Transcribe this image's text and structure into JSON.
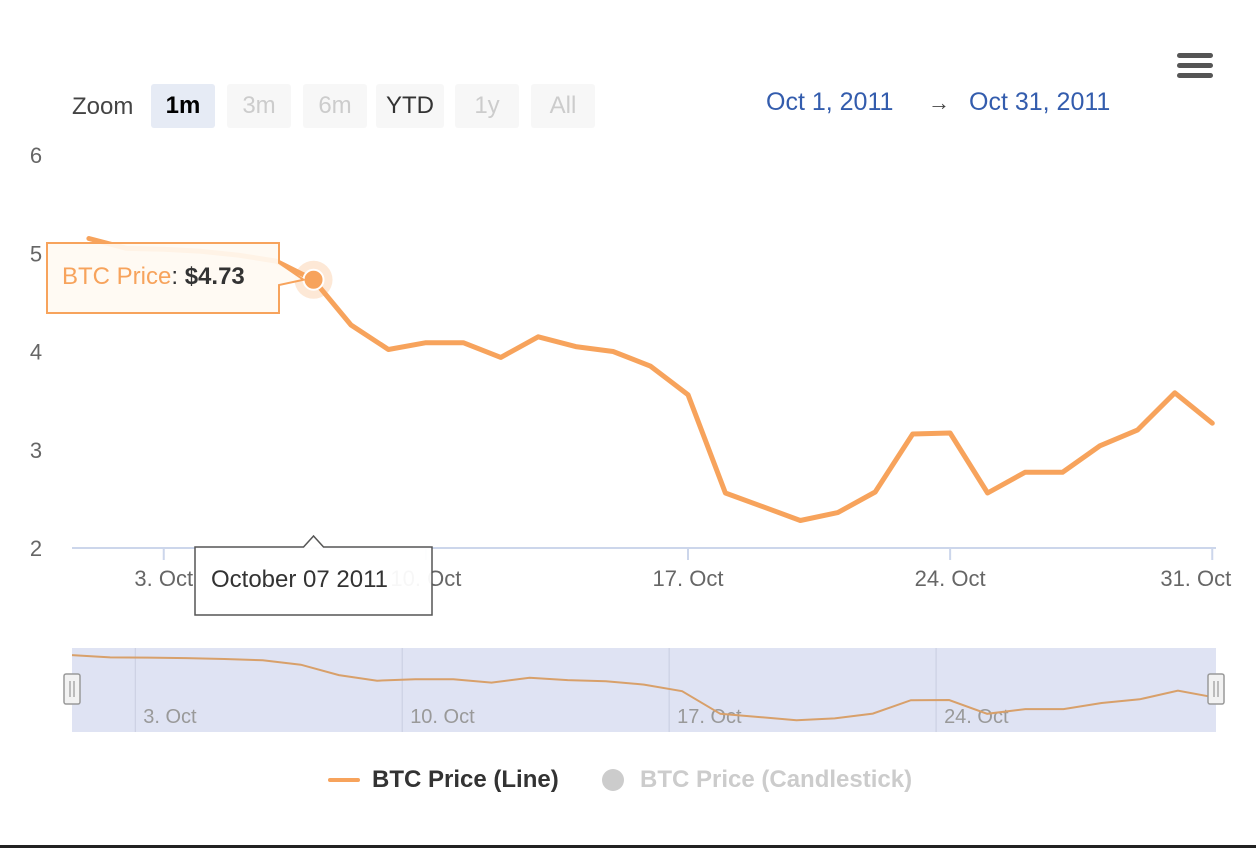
{
  "range_selector": {
    "zoom_label": "Zoom",
    "buttons": [
      {
        "label": "1m",
        "state": "active"
      },
      {
        "label": "3m",
        "state": "disabled"
      },
      {
        "label": "6m",
        "state": "disabled"
      },
      {
        "label": "YTD",
        "state": "enabled"
      },
      {
        "label": "1y",
        "state": "disabled"
      },
      {
        "label": "All",
        "state": "disabled"
      }
    ],
    "from_date": "Oct 1, 2011",
    "arrow": "→",
    "to_date": "Oct 31, 2011"
  },
  "menu": {
    "icon": "hamburger-menu-icon"
  },
  "tooltip": {
    "series_label": "BTC Price",
    "separator": ": ",
    "value_text": "$4.73",
    "date_label": "October 07 2011",
    "hover_day": 7
  },
  "legend": {
    "items": [
      {
        "label": "BTC Price (Line)",
        "visible": true
      },
      {
        "label": "BTC Price (Candlestick)",
        "visible": false
      }
    ]
  },
  "colors": {
    "series": "#f7a35c",
    "navigator_mask": "#dfe3f3",
    "axis": "#ccd6eb",
    "label": "#666666"
  },
  "chart_data": {
    "type": "line",
    "series": [
      {
        "name": "BTC Price (Line)",
        "x": [
          "2011-10-01",
          "2011-10-02",
          "2011-10-03",
          "2011-10-04",
          "2011-10-05",
          "2011-10-06",
          "2011-10-07",
          "2011-10-08",
          "2011-10-09",
          "2011-10-10",
          "2011-10-11",
          "2011-10-12",
          "2011-10-13",
          "2011-10-14",
          "2011-10-15",
          "2011-10-16",
          "2011-10-17",
          "2011-10-18",
          "2011-10-19",
          "2011-10-20",
          "2011-10-21",
          "2011-10-22",
          "2011-10-23",
          "2011-10-24",
          "2011-10-25",
          "2011-10-26",
          "2011-10-27",
          "2011-10-28",
          "2011-10-29",
          "2011-10-30",
          "2011-10-31"
        ],
        "y": [
          5.15,
          5.05,
          5.04,
          5.02,
          4.98,
          4.92,
          4.73,
          4.27,
          4.02,
          4.09,
          4.09,
          3.94,
          4.15,
          4.05,
          4.0,
          3.85,
          3.56,
          2.56,
          2.42,
          2.28,
          2.36,
          2.57,
          3.16,
          3.17,
          2.56,
          2.77,
          2.77,
          3.04,
          3.2,
          3.58,
          3.27
        ]
      }
    ],
    "x_tick_labels": [
      "3. Oct",
      "10. Oct",
      "17. Oct",
      "24. Oct",
      "31. Oct"
    ],
    "y_tick_labels": [
      "2",
      "3",
      "4",
      "5",
      "6"
    ],
    "navigator_tick_labels": [
      "3. Oct",
      "10. Oct",
      "17. Oct",
      "24. Oct"
    ],
    "xlim": [
      "2011-10-01",
      "2011-10-31"
    ],
    "ylim": [
      2,
      6
    ],
    "title": "",
    "xlabel": "",
    "ylabel": "",
    "grid": false,
    "legend_position": "bottom"
  }
}
